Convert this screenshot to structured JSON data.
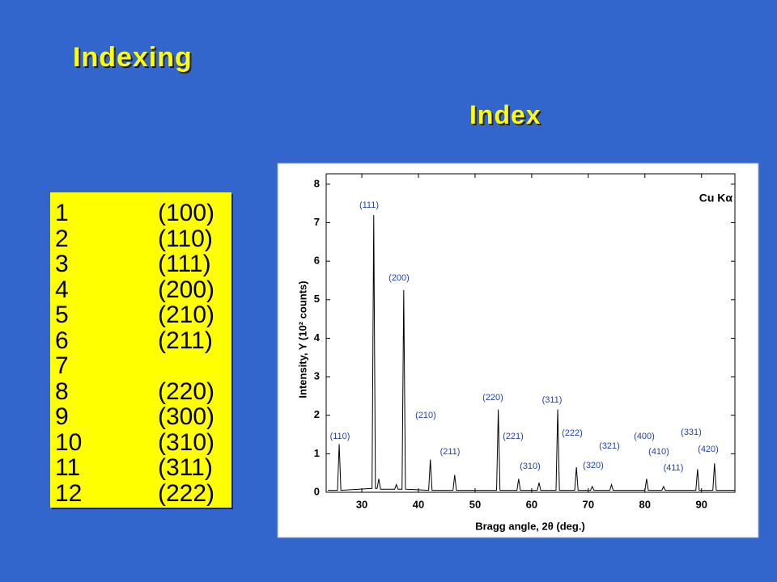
{
  "title": "Indexing",
  "subtitle": "Index",
  "table": {
    "rows": [
      [
        "1",
        "(100)"
      ],
      [
        "2",
        "(110)"
      ],
      [
        "3",
        "(111)"
      ],
      [
        "4",
        "(200)"
      ],
      [
        "5",
        "(210)"
      ],
      [
        "6",
        "(211)"
      ],
      [
        "7"
      ],
      [
        "8",
        "(220)"
      ],
      [
        "9",
        "(300)"
      ],
      [
        "10",
        "(310)"
      ],
      [
        "11",
        "(311)"
      ],
      [
        "12",
        "(222)"
      ]
    ]
  },
  "chart_data": {
    "type": "line",
    "annotation": "Cu Kα",
    "xlabel": "Bragg angle, 2θ (deg.)",
    "ylabel": "Intensity, Y (10² counts)",
    "peak_labels": [
      "(111)",
      "(200)",
      "(210)",
      "(110)",
      "(211)",
      "(220)",
      "(221)",
      "(310)",
      "(311)",
      "(222)",
      "(320)",
      "(321)",
      "(400)",
      "(410)",
      "(411)",
      "(331)",
      "(420)"
    ],
    "x": [
      24,
      25.7,
      26,
      26.3,
      31.8,
      32.1,
      32.4,
      32.7,
      33,
      33.3,
      35.8,
      36.1,
      36.4,
      37.1,
      37.4,
      37.7,
      41.8,
      42.1,
      42.4,
      46.1,
      46.4,
      46.7,
      53.8,
      54.1,
      54.4,
      57.4,
      57.7,
      58,
      61,
      61.3,
      61.6,
      64.3,
      64.6,
      64.9,
      67.6,
      67.9,
      68.2,
      70.4,
      70.7,
      71,
      73.8,
      74.1,
      74.4,
      80,
      80.3,
      80.6,
      83,
      83.3,
      83.6,
      89,
      89.3,
      89.6,
      92,
      92.3,
      92.6,
      95.9
    ],
    "series": [
      {
        "color": "#000000",
        "values": [
          0.05,
          0.05,
          1.25,
          0.05,
          0.1,
          7.2,
          0.1,
          0.1,
          0.35,
          0.08,
          0.08,
          0.2,
          0.08,
          0.08,
          5.25,
          0.08,
          0.05,
          0.85,
          0.05,
          0.05,
          0.45,
          0.05,
          0.05,
          2.15,
          0.05,
          0.05,
          0.35,
          0.05,
          0.05,
          0.25,
          0.05,
          0.05,
          2.15,
          0.05,
          0.05,
          0.65,
          0.05,
          0.05,
          0.15,
          0.05,
          0.05,
          0.2,
          0.05,
          0.05,
          0.35,
          0.05,
          0.05,
          0.15,
          0.05,
          0.05,
          0.6,
          0.05,
          0.05,
          0.75,
          0.05,
          0.05
        ]
      }
    ],
    "xlim": [
      23.7,
      95.9
    ],
    "ylim": [
      0,
      8.27
    ],
    "xticks": [
      30,
      40,
      50,
      60,
      70,
      80,
      90
    ],
    "yticks": [
      0,
      1,
      2,
      3,
      4,
      5,
      6,
      7,
      8
    ],
    "peak_label_color": "#2244aa"
  }
}
